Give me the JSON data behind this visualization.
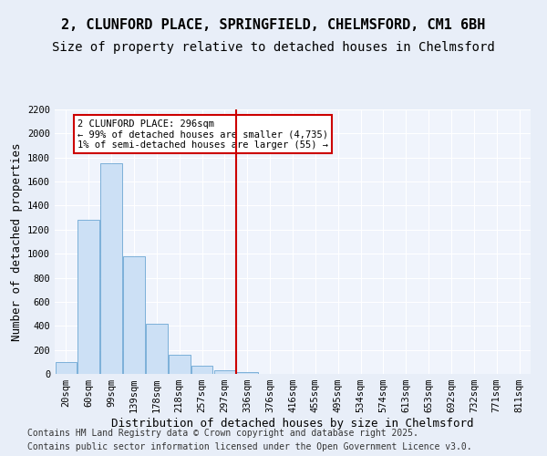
{
  "title_line1": "2, CLUNFORD PLACE, SPRINGFIELD, CHELMSFORD, CM1 6BH",
  "title_line2": "Size of property relative to detached houses in Chelmsford",
  "xlabel": "Distribution of detached houses by size in Chelmsford",
  "ylabel": "Number of detached properties",
  "bins": [
    "20sqm",
    "60sqm",
    "99sqm",
    "139sqm",
    "178sqm",
    "218sqm",
    "257sqm",
    "297sqm",
    "336sqm",
    "376sqm",
    "416sqm",
    "455sqm",
    "495sqm",
    "534sqm",
    "574sqm",
    "613sqm",
    "653sqm",
    "692sqm",
    "732sqm",
    "771sqm",
    "811sqm"
  ],
  "values": [
    100,
    1280,
    1750,
    975,
    415,
    160,
    70,
    30,
    15,
    0,
    0,
    0,
    0,
    0,
    0,
    0,
    0,
    0,
    0,
    0,
    0
  ],
  "bar_color": "#cce0f5",
  "bar_edge_color": "#5599cc",
  "vline_x": 7.5,
  "vline_color": "#cc0000",
  "annotation_text": "2 CLUNFORD PLACE: 296sqm\n← 99% of detached houses are smaller (4,735)\n1% of semi-detached houses are larger (55) →",
  "annotation_box_color": "#ffffff",
  "annotation_box_edge": "#cc0000",
  "ylim": [
    0,
    2200
  ],
  "yticks": [
    0,
    200,
    400,
    600,
    800,
    1000,
    1200,
    1400,
    1600,
    1800,
    2000,
    2200
  ],
  "footer_line1": "Contains HM Land Registry data © Crown copyright and database right 2025.",
  "footer_line2": "Contains public sector information licensed under the Open Government Licence v3.0.",
  "bg_color": "#e8eef8",
  "plot_bg_color": "#f0f4fc",
  "grid_color": "#ffffff",
  "title_fontsize": 11,
  "subtitle_fontsize": 10,
  "axis_label_fontsize": 9,
  "tick_fontsize": 7.5,
  "footer_fontsize": 7
}
